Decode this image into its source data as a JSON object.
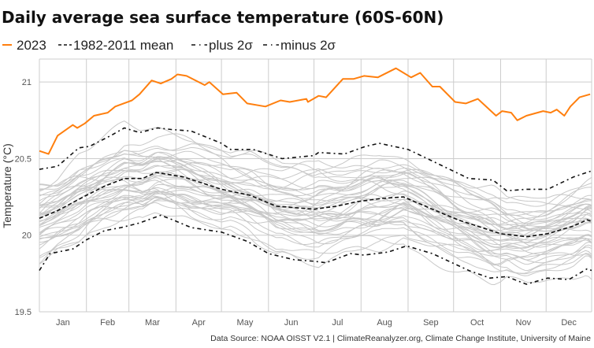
{
  "chart_data": {
    "type": "line",
    "title": "Daily average sea surface temperature (60S-60N)",
    "ylabel": "Temperature (°C)",
    "xlabel": "",
    "x_unit": "day of year",
    "xlim": [
      1,
      365
    ],
    "ylim": [
      19.5,
      21.15
    ],
    "grid": true,
    "legend_position": "top-left",
    "x_tick_labels": [
      "Jan",
      "Feb",
      "Mar",
      "Apr",
      "May",
      "Jun",
      "Jul",
      "Aug",
      "Sep",
      "Oct",
      "Nov",
      "Dec"
    ],
    "y_ticks": [
      19.5,
      20,
      20.5,
      21
    ],
    "y_tick_labels": [
      "19.5",
      "20",
      "20.5",
      "21"
    ],
    "colors": {
      "2023": "#ff7f0e",
      "mean": "#111111",
      "sigma": "#111111",
      "other_years": "#c8c8c8",
      "grid": "#cccccc"
    },
    "series": [
      {
        "name": "2023",
        "style": "solid",
        "x": [
          1,
          7,
          13,
          23,
          26,
          31,
          37,
          46,
          51,
          62,
          67,
          75,
          81,
          88,
          92,
          98,
          110,
          113,
          122,
          131,
          138,
          150,
          160,
          166,
          177,
          178,
          185,
          190,
          201,
          208,
          215,
          224,
          236,
          246,
          252,
          260,
          265,
          275,
          282,
          290,
          302,
          306,
          312,
          316,
          322,
          333,
          338,
          342,
          347,
          351,
          357,
          364
        ],
        "y": [
          20.55,
          20.53,
          20.65,
          20.72,
          20.7,
          20.73,
          20.78,
          20.8,
          20.84,
          20.88,
          20.92,
          21.01,
          20.99,
          21.02,
          21.05,
          21.04,
          20.98,
          21.0,
          20.92,
          20.93,
          20.86,
          20.84,
          20.88,
          20.87,
          20.89,
          20.87,
          20.91,
          20.9,
          21.02,
          21.02,
          21.04,
          21.03,
          21.09,
          21.03,
          21.06,
          20.97,
          20.97,
          20.87,
          20.86,
          20.89,
          20.78,
          20.81,
          20.8,
          20.75,
          20.78,
          20.81,
          20.8,
          20.82,
          20.78,
          20.84,
          20.9,
          20.92
        ]
      },
      {
        "name": "1982-2011 mean",
        "style": "dashed",
        "x": [
          1,
          13,
          32,
          44,
          57,
          69,
          78,
          84,
          96,
          121,
          140,
          157,
          182,
          197,
          211,
          227,
          241,
          260,
          277,
          305,
          322,
          336,
          353,
          362,
          365
        ],
        "y": [
          20.11,
          20.16,
          20.26,
          20.32,
          20.37,
          20.37,
          20.41,
          20.4,
          20.38,
          20.3,
          20.26,
          20.19,
          20.17,
          20.19,
          20.22,
          20.24,
          20.25,
          20.17,
          20.1,
          20.01,
          19.99,
          20.01,
          20.06,
          20.1,
          20.09
        ]
      },
      {
        "name": "plus 2σ",
        "style": "dash-dot",
        "x": [
          1,
          13,
          27,
          34,
          48,
          57,
          67,
          79,
          88,
          101,
          121,
          127,
          142,
          161,
          182,
          185,
          202,
          216,
          225,
          244,
          263,
          284,
          300,
          309,
          322,
          336,
          353,
          365
        ],
        "y": [
          20.43,
          20.45,
          20.57,
          20.58,
          20.65,
          20.7,
          20.67,
          20.7,
          20.69,
          20.68,
          20.6,
          20.56,
          20.56,
          20.5,
          20.52,
          20.54,
          20.53,
          20.58,
          20.6,
          20.56,
          20.47,
          20.37,
          20.36,
          20.29,
          20.3,
          20.3,
          20.38,
          20.42
        ]
      },
      {
        "name": "minus 2σ",
        "style": "dash-dot",
        "x": [
          1,
          8,
          23,
          32,
          44,
          55,
          67,
          81,
          89,
          101,
          121,
          138,
          152,
          169,
          182,
          190,
          206,
          215,
          231,
          243,
          260,
          284,
          298,
          309,
          322,
          336,
          350,
          362,
          365
        ],
        "y": [
          19.77,
          19.88,
          19.91,
          19.97,
          20.03,
          20.05,
          20.08,
          20.13,
          20.1,
          20.05,
          20.02,
          19.96,
          19.88,
          19.84,
          19.83,
          19.82,
          19.88,
          19.87,
          19.89,
          19.93,
          19.88,
          19.77,
          19.72,
          19.73,
          19.68,
          19.72,
          19.71,
          19.78,
          19.77
        ]
      }
    ],
    "legend": [
      {
        "symbol": "—",
        "label": "2023"
      },
      {
        "symbol": "--",
        "label": "1982-2011 mean"
      },
      {
        "symbol": "- ·",
        "label": "plus 2σ"
      },
      {
        "symbol": "- ·",
        "label": "minus 2σ"
      }
    ],
    "source": "Data Source: NOAA OISST V2.1 | ClimateReanalyzer.org, Climate Change Institute, University of Maine"
  }
}
